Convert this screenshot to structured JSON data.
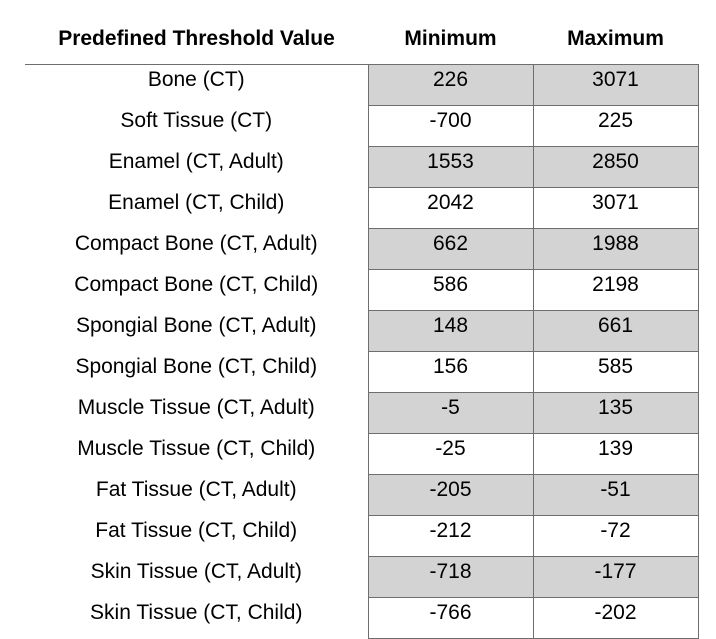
{
  "table": {
    "headers": {
      "label": "Predefined Threshold Value",
      "min": "Minimum",
      "max": "Maximum"
    },
    "rows": [
      {
        "label": "Bone (CT)",
        "min": "226",
        "max": "3071"
      },
      {
        "label": "Soft Tissue (CT)",
        "min": "-700",
        "max": "225"
      },
      {
        "label": "Enamel (CT, Adult)",
        "min": "1553",
        "max": "2850"
      },
      {
        "label": "Enamel (CT, Child)",
        "min": "2042",
        "max": "3071"
      },
      {
        "label": "Compact Bone (CT, Adult)",
        "min": "662",
        "max": "1988"
      },
      {
        "label": "Compact Bone (CT, Child)",
        "min": "586",
        "max": "2198"
      },
      {
        "label": "Spongial Bone (CT, Adult)",
        "min": "148",
        "max": "661"
      },
      {
        "label": "Spongial Bone (CT, Child)",
        "min": "156",
        "max": "585"
      },
      {
        "label": "Muscle Tissue (CT, Adult)",
        "min": "-5",
        "max": "135"
      },
      {
        "label": "Muscle Tissue (CT, Child)",
        "min": "-25",
        "max": "139"
      },
      {
        "label": "Fat Tissue (CT, Adult)",
        "min": "-205",
        "max": "-51"
      },
      {
        "label": "Fat Tissue (CT, Child)",
        "min": "-212",
        "max": "-72"
      },
      {
        "label": "Skin Tissue (CT, Adult)",
        "min": "-718",
        "max": "-177"
      },
      {
        "label": "Skin Tissue (CT, Child)",
        "min": "-766",
        "max": "-202"
      }
    ]
  },
  "colors": {
    "shaded_row": "#d3d3d3",
    "grid_line": "#6e6e6e"
  }
}
